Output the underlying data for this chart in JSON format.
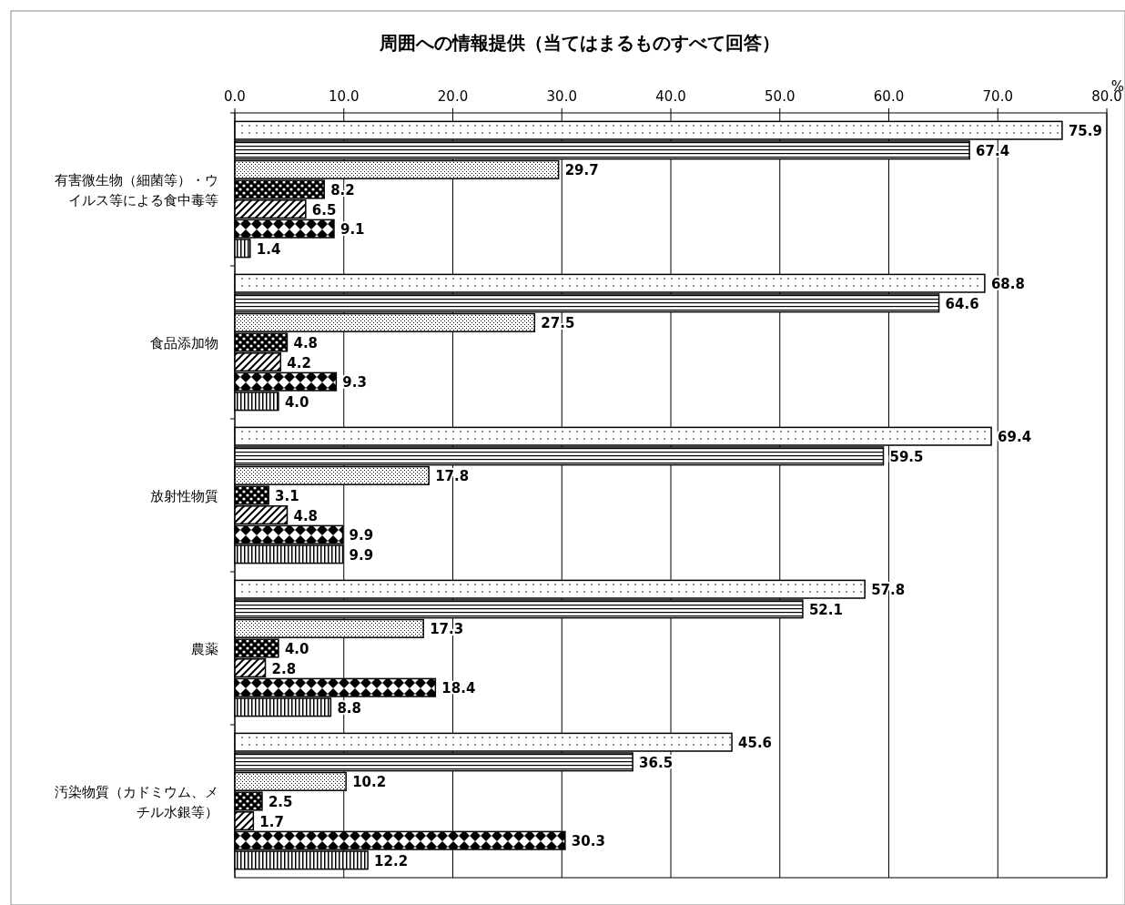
{
  "chart_data": {
    "type": "bar",
    "orientation": "horizontal",
    "title": "周囲への情報提供（当てはまるものすべて回答）",
    "xlabel": "%",
    "categories": [
      "有害微生物（細菌等）・ウイルス等による食中毒等",
      "食品添加物",
      "放射性物質",
      "農薬",
      "汚染物質（カドミウム、メチル水銀等）"
    ],
    "series": [
      {
        "color": "#000000",
        "values": [
          75.9,
          68.8,
          69.4,
          57.8,
          45.6
        ],
        "value_labels": [
          "75.9",
          "68.8",
          "69.4",
          "57.8",
          "45.6"
        ]
      },
      {
        "color": "#000000",
        "values": [
          67.4,
          64.6,
          59.5,
          52.1,
          36.5
        ],
        "value_labels": [
          "67.4",
          "64.6",
          "59.5",
          "52.1",
          "36.5"
        ]
      },
      {
        "color": "#000000",
        "values": [
          29.7,
          27.5,
          17.8,
          17.3,
          10.2
        ],
        "value_labels": [
          "29.7",
          "27.5",
          "17.8",
          "17.3",
          "10.2"
        ]
      },
      {
        "color": "#000000",
        "values": [
          8.2,
          4.8,
          3.1,
          4.0,
          2.5
        ],
        "value_labels": [
          "8.2",
          "4.8",
          "3.1",
          "4.0",
          "2.5"
        ]
      },
      {
        "color": "#000000",
        "values": [
          6.5,
          4.2,
          4.8,
          2.8,
          1.7
        ],
        "value_labels": [
          "6.5",
          "4.2",
          "4.8",
          "2.8",
          "1.7"
        ]
      },
      {
        "color": "#000000",
        "values": [
          9.1,
          9.3,
          9.9,
          18.4,
          30.3
        ],
        "value_labels": [
          "9.1",
          "9.3",
          "9.9",
          "18.4",
          "30.3"
        ]
      },
      {
        "color": "#000000",
        "values": [
          1.4,
          4.0,
          9.9,
          8.8,
          12.2
        ],
        "value_labels": [
          "1.4",
          "4.0",
          "9.9",
          "8.8",
          "12.2"
        ]
      }
    ],
    "xlim": [
      0,
      80
    ],
    "xticks": [
      {
        "value": 0,
        "label": "0.0"
      },
      {
        "value": 10,
        "label": "10.0"
      },
      {
        "value": 20,
        "label": "20.0"
      },
      {
        "value": 30,
        "label": "30.0"
      },
      {
        "value": 40,
        "label": "40.0"
      },
      {
        "value": 50,
        "label": "50.0"
      },
      {
        "value": 60,
        "label": "60.0"
      },
      {
        "value": 70,
        "label": "70.0"
      },
      {
        "value": 80,
        "label": "80.0"
      }
    ],
    "grid": "x"
  }
}
